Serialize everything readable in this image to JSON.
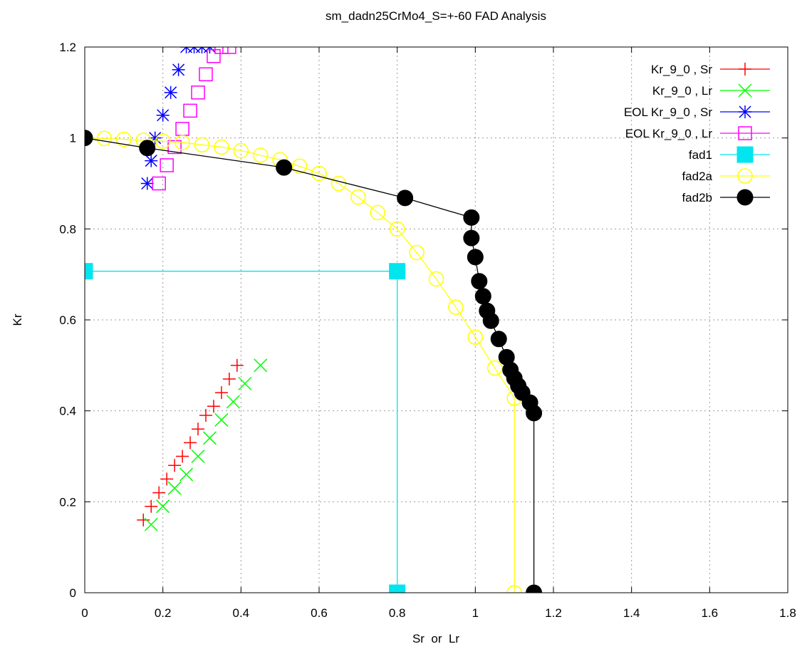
{
  "chart_data": {
    "type": "scatter",
    "title": "sm_dadn25CrMo4_S=+-60 FAD Analysis",
    "xlabel": "Sr  or  Lr",
    "ylabel": "Kr",
    "xlim": [
      0,
      1.8
    ],
    "ylim": [
      0,
      1.2
    ],
    "xticks": [
      0,
      0.2,
      0.4,
      0.6,
      0.8,
      1,
      1.2,
      1.4,
      1.6,
      1.8
    ],
    "yticks": [
      0,
      0.2,
      0.4,
      0.6,
      0.8,
      1,
      1.2
    ],
    "xtick_labels": [
      "0",
      "0.2",
      "0.4",
      "0.6",
      "0.8",
      "1",
      "1.2",
      "1.4",
      "1.6",
      "1.8"
    ],
    "ytick_labels": [
      "0",
      "0.2",
      "0.4",
      "0.6",
      "0.8",
      "1",
      "1.2"
    ],
    "grid": true,
    "legend_position": "top-right",
    "series": [
      {
        "name": "Kr_9_0 , Sr",
        "color": "#ff0000",
        "marker": "plus",
        "line": false,
        "x": [
          0.15,
          0.17,
          0.19,
          0.21,
          0.23,
          0.25,
          0.27,
          0.29,
          0.31,
          0.33,
          0.35,
          0.37,
          0.39
        ],
        "y": [
          0.16,
          0.19,
          0.22,
          0.25,
          0.28,
          0.3,
          0.33,
          0.36,
          0.39,
          0.41,
          0.44,
          0.47,
          0.5
        ]
      },
      {
        "name": "Kr_9_0 , Lr",
        "color": "#00ff00",
        "marker": "cross",
        "line": false,
        "x": [
          0.17,
          0.2,
          0.23,
          0.26,
          0.29,
          0.32,
          0.35,
          0.38,
          0.41,
          0.45
        ],
        "y": [
          0.15,
          0.19,
          0.23,
          0.26,
          0.3,
          0.34,
          0.38,
          0.42,
          0.46,
          0.5
        ]
      },
      {
        "name": "EOL Kr_9_0 , Sr",
        "color": "#0000ff",
        "marker": "star",
        "line": false,
        "x": [
          0.16,
          0.17,
          0.18,
          0.2,
          0.22,
          0.24,
          0.26,
          0.28,
          0.3,
          0.32
        ],
        "y": [
          0.9,
          0.95,
          1.0,
          1.05,
          1.1,
          1.15,
          1.2,
          1.2,
          1.2,
          1.2
        ]
      },
      {
        "name": "EOL Kr_9_0 , Lr",
        "color": "#ff00ff",
        "marker": "square-open",
        "line": false,
        "x": [
          0.19,
          0.21,
          0.23,
          0.25,
          0.27,
          0.29,
          0.31,
          0.33,
          0.35,
          0.37
        ],
        "y": [
          0.9,
          0.94,
          0.98,
          1.02,
          1.06,
          1.1,
          1.14,
          1.18,
          1.2,
          1.2
        ]
      },
      {
        "name": "fad1",
        "color": "#00e5ee",
        "marker": "square-filled",
        "line": true,
        "x": [
          0,
          0.8,
          0.8
        ],
        "y": [
          0.707,
          0.707,
          0
        ]
      },
      {
        "name": "fad2a",
        "color": "#ffff00",
        "marker": "circle-open",
        "line": true,
        "x": [
          0,
          0.05,
          0.1,
          0.15,
          0.2,
          0.25,
          0.3,
          0.35,
          0.4,
          0.45,
          0.5,
          0.55,
          0.6,
          0.65,
          0.7,
          0.75,
          0.8,
          0.85,
          0.9,
          0.95,
          1.0,
          1.05,
          1.1,
          1.1
        ],
        "y": [
          1.0,
          0.999,
          0.997,
          0.995,
          0.993,
          0.99,
          0.985,
          0.98,
          0.972,
          0.962,
          0.952,
          0.938,
          0.922,
          0.9,
          0.87,
          0.836,
          0.8,
          0.748,
          0.69,
          0.628,
          0.562,
          0.494,
          0.428,
          0
        ]
      },
      {
        "name": "fad2b",
        "color": "#000000",
        "marker": "circle-filled",
        "line": true,
        "x": [
          0,
          0.16,
          0.51,
          0.82,
          0.99,
          0.99,
          1.0,
          1.01,
          1.02,
          1.03,
          1.04,
          1.06,
          1.08,
          1.09,
          1.1,
          1.11,
          1.12,
          1.14,
          1.15,
          1.15
        ],
        "y": [
          1.0,
          0.978,
          0.935,
          0.868,
          0.825,
          0.78,
          0.738,
          0.685,
          0.652,
          0.62,
          0.598,
          0.558,
          0.518,
          0.49,
          0.472,
          0.455,
          0.44,
          0.418,
          0.395,
          0
        ]
      }
    ]
  }
}
